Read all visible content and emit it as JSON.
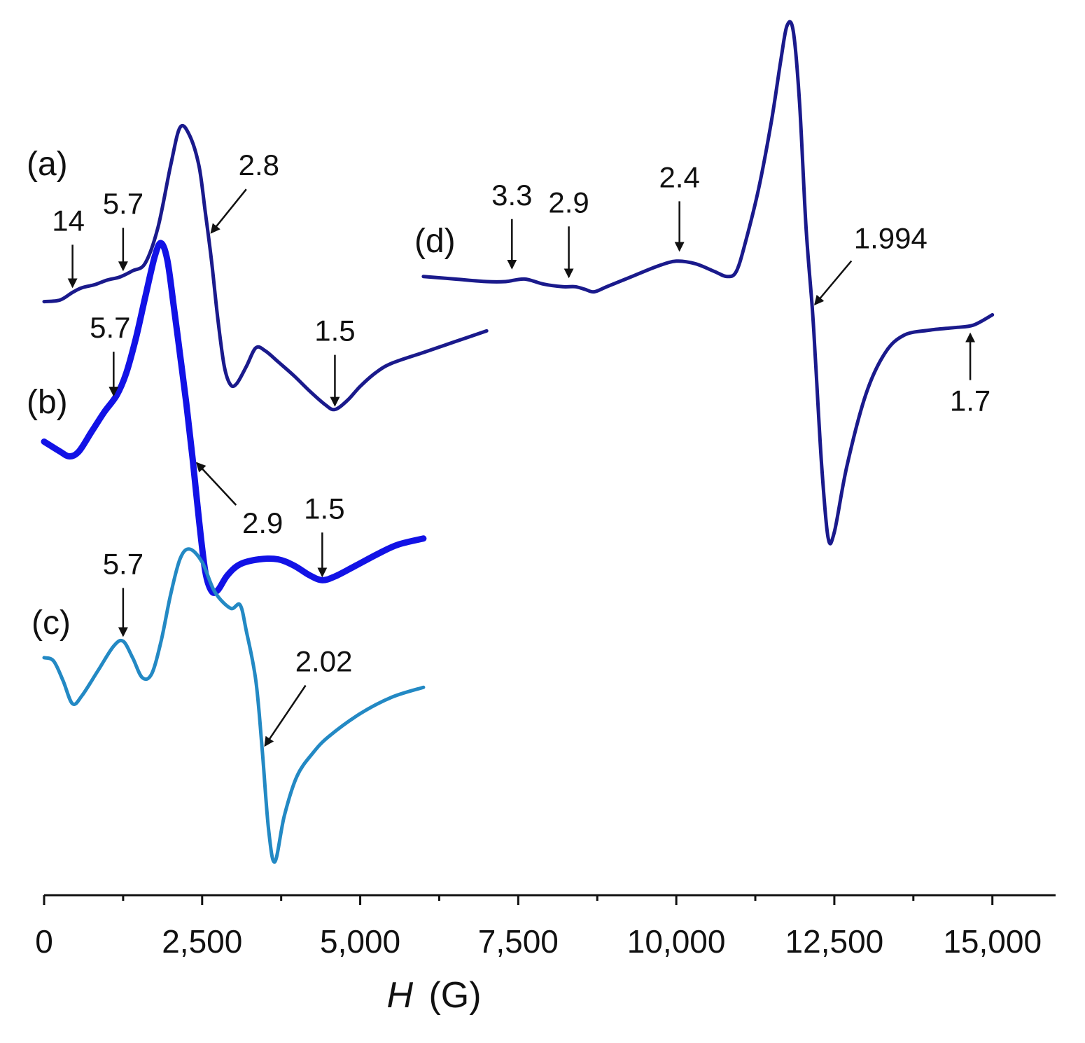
{
  "chart_data": {
    "type": "line",
    "title": "",
    "xlabel": "H",
    "xlabel_unit": "(G)",
    "ylabel": "",
    "xlim": [
      0,
      16000
    ],
    "x_ticks": [
      0,
      2500,
      5000,
      7500,
      10000,
      12500,
      15000
    ],
    "x_tick_labels": [
      "0",
      "2,500",
      "5,000",
      "7,500",
      "10,000",
      "12,500",
      "15,000"
    ],
    "x_minor_ticks": [
      1250,
      3750,
      6250,
      8750,
      11250,
      13750
    ],
    "y_axis_shown": false,
    "grid": false,
    "legend": "none",
    "series": [
      {
        "name": "(a)",
        "color": "#1a1a8c",
        "line_width": 5,
        "points": [
          [
            0,
            0.52
          ],
          [
            250,
            0.53
          ],
          [
            450,
            0.58
          ],
          [
            600,
            0.61
          ],
          [
            800,
            0.63
          ],
          [
            1000,
            0.66
          ],
          [
            1200,
            0.68
          ],
          [
            1400,
            0.72
          ],
          [
            1600,
            0.77
          ],
          [
            1800,
            1.0
          ],
          [
            2000,
            1.4
          ],
          [
            2150,
            1.65
          ],
          [
            2300,
            1.6
          ],
          [
            2450,
            1.4
          ],
          [
            2550,
            1.1
          ],
          [
            2650,
            0.78
          ],
          [
            2750,
            0.4
          ],
          [
            2850,
            0.1
          ],
          [
            2950,
            -0.02
          ],
          [
            3050,
            -0.01
          ],
          [
            3200,
            0.1
          ],
          [
            3350,
            0.22
          ],
          [
            3500,
            0.2
          ],
          [
            3700,
            0.13
          ],
          [
            3950,
            0.04
          ],
          [
            4200,
            -0.06
          ],
          [
            4450,
            -0.15
          ],
          [
            4600,
            -0.18
          ],
          [
            4800,
            -0.12
          ],
          [
            5000,
            -0.03
          ],
          [
            5250,
            0.06
          ],
          [
            5500,
            0.12
          ],
          [
            6000,
            0.19
          ],
          [
            6500,
            0.26
          ],
          [
            7000,
            0.33
          ]
        ]
      },
      {
        "name": "(b)",
        "color": "#1212e6",
        "line_width": 9,
        "points": [
          [
            0,
            0.14
          ],
          [
            250,
            0.06
          ],
          [
            400,
            0.02
          ],
          [
            550,
            0.06
          ],
          [
            750,
            0.22
          ],
          [
            950,
            0.38
          ],
          [
            1150,
            0.52
          ],
          [
            1300,
            0.7
          ],
          [
            1450,
            0.98
          ],
          [
            1600,
            1.32
          ],
          [
            1750,
            1.65
          ],
          [
            1850,
            1.76
          ],
          [
            1950,
            1.62
          ],
          [
            2050,
            1.25
          ],
          [
            2150,
            0.85
          ],
          [
            2250,
            0.45
          ],
          [
            2350,
            0.0
          ],
          [
            2450,
            -0.5
          ],
          [
            2550,
            -0.92
          ],
          [
            2650,
            -1.08
          ],
          [
            2750,
            -1.07
          ],
          [
            2900,
            -0.95
          ],
          [
            3100,
            -0.86
          ],
          [
            3400,
            -0.82
          ],
          [
            3700,
            -0.82
          ],
          [
            3950,
            -0.87
          ],
          [
            4200,
            -0.95
          ],
          [
            4400,
            -0.99
          ],
          [
            4600,
            -0.96
          ],
          [
            4900,
            -0.88
          ],
          [
            5300,
            -0.77
          ],
          [
            5600,
            -0.7
          ],
          [
            6000,
            -0.65
          ]
        ]
      },
      {
        "name": "(c)",
        "color": "#2389c4",
        "line_width": 5,
        "points": [
          [
            0,
            0.26
          ],
          [
            150,
            0.24
          ],
          [
            300,
            0.12
          ],
          [
            450,
            -0.02
          ],
          [
            600,
            0.03
          ],
          [
            850,
            0.18
          ],
          [
            1100,
            0.33
          ],
          [
            1250,
            0.36
          ],
          [
            1400,
            0.26
          ],
          [
            1550,
            0.14
          ],
          [
            1700,
            0.16
          ],
          [
            1850,
            0.36
          ],
          [
            2000,
            0.64
          ],
          [
            2150,
            0.86
          ],
          [
            2300,
            0.92
          ],
          [
            2500,
            0.84
          ],
          [
            2700,
            0.66
          ],
          [
            2950,
            0.56
          ],
          [
            3100,
            0.58
          ],
          [
            3200,
            0.42
          ],
          [
            3350,
            0.12
          ],
          [
            3450,
            -0.3
          ],
          [
            3550,
            -0.78
          ],
          [
            3650,
            -0.98
          ],
          [
            3800,
            -0.7
          ],
          [
            4000,
            -0.46
          ],
          [
            4250,
            -0.32
          ],
          [
            4500,
            -0.22
          ],
          [
            5000,
            -0.08
          ],
          [
            5500,
            0.02
          ],
          [
            6000,
            0.08
          ]
        ]
      },
      {
        "name": "d",
        "color": "#1a1a8c",
        "line_width": 5,
        "points": [
          [
            6000,
            0.02
          ],
          [
            6500,
            0.01
          ],
          [
            7000,
            0.0
          ],
          [
            7300,
            0.0
          ],
          [
            7600,
            0.01
          ],
          [
            7900,
            -0.01
          ],
          [
            8200,
            -0.02
          ],
          [
            8400,
            -0.02
          ],
          [
            8550,
            -0.03
          ],
          [
            8700,
            -0.04
          ],
          [
            8900,
            -0.02
          ],
          [
            9300,
            0.02
          ],
          [
            9700,
            0.06
          ],
          [
            10000,
            0.08
          ],
          [
            10300,
            0.07
          ],
          [
            10600,
            0.04
          ],
          [
            10800,
            0.02
          ],
          [
            10950,
            0.04
          ],
          [
            11100,
            0.16
          ],
          [
            11300,
            0.36
          ],
          [
            11500,
            0.62
          ],
          [
            11650,
            0.86
          ],
          [
            11750,
            1.0
          ],
          [
            11850,
            0.98
          ],
          [
            11950,
            0.7
          ],
          [
            12050,
            0.22
          ],
          [
            12150,
            -0.1
          ],
          [
            12200,
            -0.3
          ],
          [
            12300,
            -0.72
          ],
          [
            12400,
            -1.0
          ],
          [
            12500,
            -0.98
          ],
          [
            12700,
            -0.72
          ],
          [
            13000,
            -0.44
          ],
          [
            13300,
            -0.28
          ],
          [
            13600,
            -0.21
          ],
          [
            14000,
            -0.19
          ],
          [
            14400,
            -0.18
          ],
          [
            14700,
            -0.17
          ],
          [
            15000,
            -0.13
          ]
        ]
      }
    ],
    "curve_labels": [
      {
        "text": "(a)",
        "series": "(a)"
      },
      {
        "text": "(b)",
        "series": "(b)"
      },
      {
        "text": "(c)",
        "series": "(c)"
      },
      {
        "text": "(d)",
        "series": "d"
      }
    ],
    "annotations": [
      {
        "text": "14",
        "series": "(a)",
        "x": 450,
        "direction": "down"
      },
      {
        "text": "5.7",
        "series": "(a)",
        "x": 1250,
        "direction": "down"
      },
      {
        "text": "2.8",
        "series": "(a)",
        "x": 2600,
        "direction": "diagonal-down"
      },
      {
        "text": "1.5",
        "series": "(a)",
        "x": 4600,
        "direction": "down"
      },
      {
        "text": "5.7",
        "series": "(b)",
        "x": 1100,
        "direction": "down"
      },
      {
        "text": "2.9",
        "series": "(b)",
        "x": 2350,
        "direction": "diagonal-up"
      },
      {
        "text": "1.5",
        "series": "(b)",
        "x": 4400,
        "direction": "down"
      },
      {
        "text": "5.7",
        "series": "(c)",
        "x": 1250,
        "direction": "down"
      },
      {
        "text": "2.02",
        "series": "(c)",
        "x": 3450,
        "direction": "diagonal-down"
      },
      {
        "text": "3.3",
        "series": "d",
        "x": 7400,
        "direction": "down"
      },
      {
        "text": "2.9",
        "series": "d",
        "x": 8300,
        "direction": "down"
      },
      {
        "text": "2.4",
        "series": "d",
        "x": 10050,
        "direction": "down"
      },
      {
        "text": "1.994",
        "series": "d",
        "x": 12150,
        "direction": "diagonal-down"
      },
      {
        "text": "1.7",
        "series": "d",
        "x": 14650,
        "direction": "up"
      }
    ]
  }
}
